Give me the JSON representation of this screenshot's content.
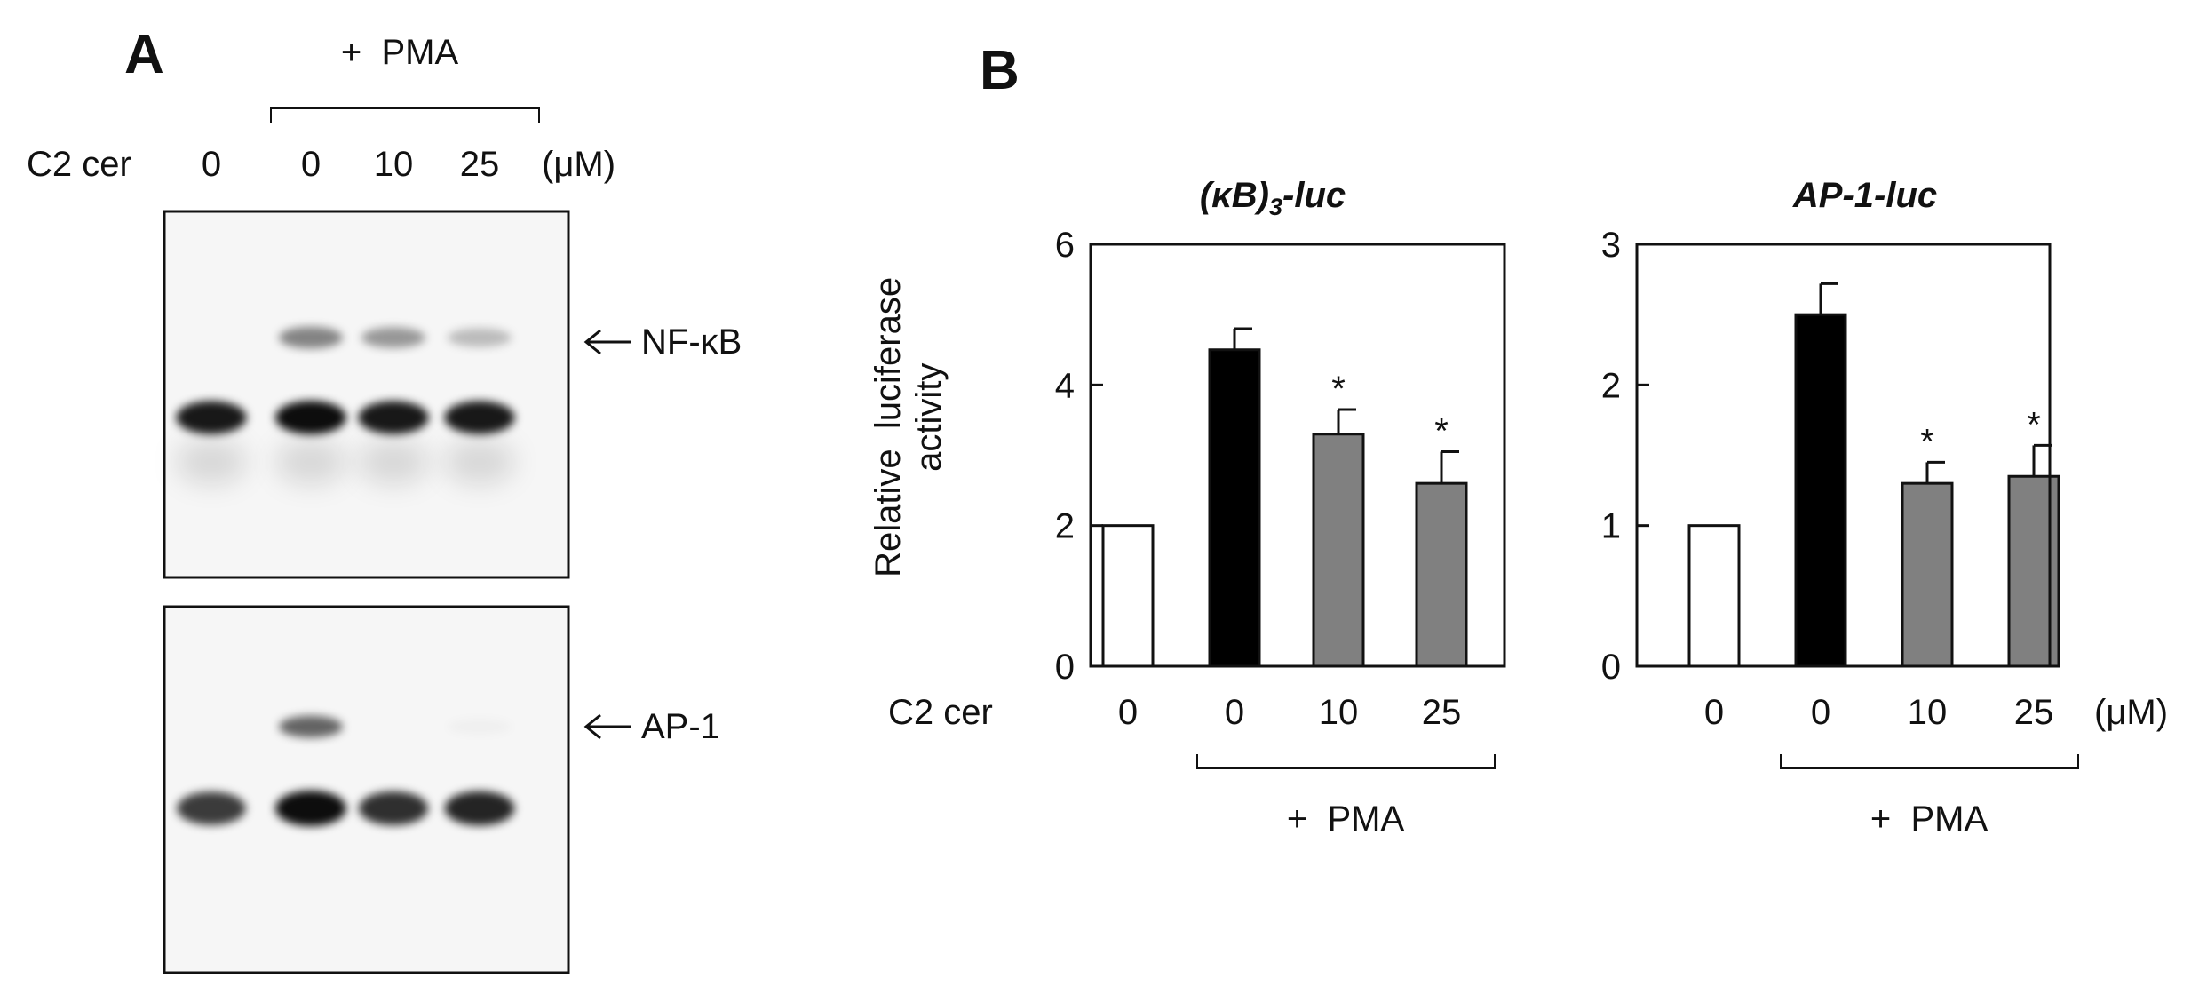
{
  "panel_a": {
    "label": "A",
    "treatment_header": "+  PMA",
    "row_label": "C2 cer",
    "lanes": [
      "0",
      "0",
      "10",
      "25"
    ],
    "unit": "(μM)",
    "gels": [
      {
        "band_label": "NF-κB",
        "specific_band": [
          0.0,
          0.55,
          0.45,
          0.28
        ],
        "nonspecific_band": [
          0.95,
          1.0,
          0.95,
          0.95
        ]
      },
      {
        "band_label": "AP-1",
        "specific_band": [
          0.0,
          0.7,
          0.0,
          0.03
        ],
        "nonspecific_band": [
          0.8,
          1.0,
          0.85,
          0.9
        ]
      }
    ]
  },
  "panel_b": {
    "label": "B",
    "row_label": "C2 cer",
    "unit": "(μM)",
    "treatment_footer": "+  PMA",
    "ylabel_line1": "Relative  luciferase",
    "ylabel_line2": "activity"
  },
  "chart_data": [
    {
      "type": "bar",
      "title": "(κB)3-luc",
      "ylabel": "Relative luciferase activity",
      "categories": [
        "0",
        "0",
        "10",
        "25"
      ],
      "values": [
        2.0,
        4.5,
        3.3,
        2.6
      ],
      "errors": [
        0,
        0.3,
        0.35,
        0.45
      ],
      "significance": [
        "",
        "",
        "*",
        "*"
      ],
      "bar_colors": [
        "#ffffff",
        "#000000",
        "#808080",
        "#808080"
      ],
      "yticks": [
        0,
        2,
        4,
        6
      ],
      "ylim": [
        0,
        6
      ]
    },
    {
      "type": "bar",
      "title": "AP-1-luc",
      "categories": [
        "0",
        "0",
        "10",
        "25"
      ],
      "values": [
        1.0,
        2.5,
        1.3,
        1.35
      ],
      "errors": [
        0,
        0.22,
        0.15,
        0.22
      ],
      "significance": [
        "",
        "",
        "*",
        "*"
      ],
      "bar_colors": [
        "#ffffff",
        "#000000",
        "#808080",
        "#808080"
      ],
      "yticks": [
        0,
        1,
        2,
        3
      ],
      "ylim": [
        0,
        3
      ]
    }
  ]
}
